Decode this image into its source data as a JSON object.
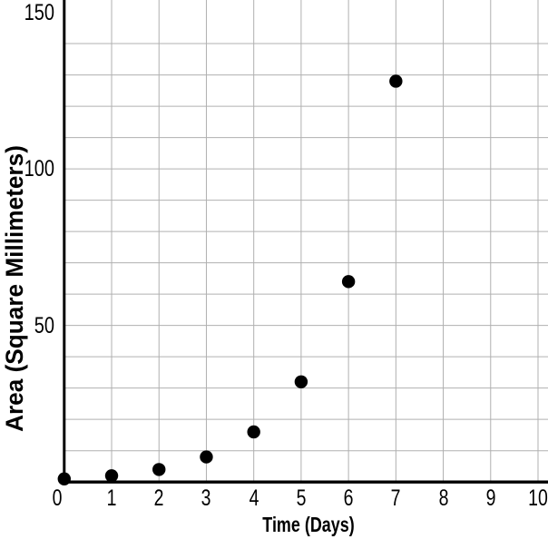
{
  "chart_data": {
    "type": "scatter",
    "title": "",
    "xlabel": "Time (Days)",
    "ylabel": "Area (Square Millimeters)",
    "series": [
      {
        "name": "area-over-time",
        "x": [
          0,
          1,
          2,
          3,
          4,
          5,
          6,
          7
        ],
        "y": [
          1,
          2,
          4,
          8,
          16,
          32,
          64,
          128
        ]
      }
    ],
    "xlim": [
      0,
      10
    ],
    "ylim_visible": [
      0,
      154
    ],
    "x_grid_step": 1,
    "y_grid_step": 10,
    "grid": true,
    "legend": "none",
    "x_tick_labels": [
      "0",
      "1",
      "2",
      "3",
      "4",
      "5",
      "6",
      "7",
      "8",
      "9",
      "10"
    ],
    "y_tick_values": [
      50,
      100,
      150
    ],
    "y_tick_labels": [
      "50",
      "100",
      "150"
    ],
    "colors": {
      "point": "#000000",
      "axis": "#000000",
      "grid": "#b0b0b0",
      "background": "#ffffff",
      "text": "#000000"
    }
  }
}
